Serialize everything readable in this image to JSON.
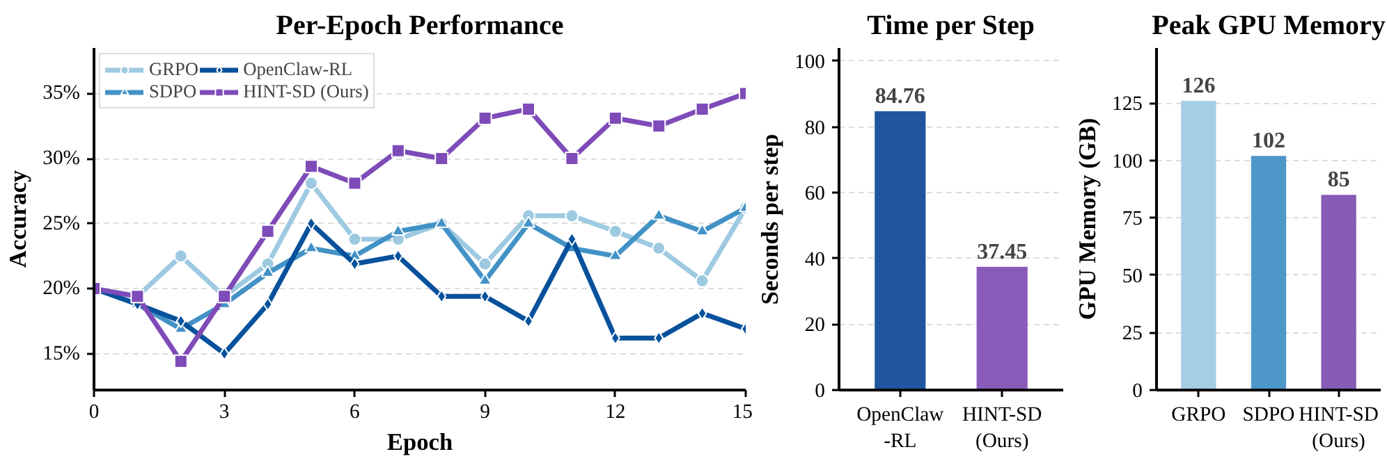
{
  "chart_data": [
    {
      "type": "line",
      "title": "Per-Epoch Performance",
      "xlabel": "Epoch",
      "ylabel": "Accuracy",
      "x": [
        0,
        1,
        2,
        3,
        4,
        5,
        6,
        7,
        8,
        9,
        10,
        11,
        12,
        13,
        14,
        15
      ],
      "xlim": [
        0,
        15
      ],
      "xticks": [
        0,
        3,
        6,
        9,
        12,
        15
      ],
      "ylim": [
        12.2,
        38.5
      ],
      "yticks": [
        {
          "value": 15,
          "label": "15%"
        },
        {
          "value": 20,
          "label": "20%"
        },
        {
          "value": 25,
          "label": "25%"
        },
        {
          "value": 30,
          "label": "30%"
        },
        {
          "value": 35,
          "label": "35%"
        }
      ],
      "grid": "y",
      "legend": "top left",
      "line_style": "solid",
      "series": [
        {
          "name": "GRPO",
          "color": "#9ecae1",
          "marker": "circle",
          "values": [
            20,
            19.4,
            22.5,
            19.4,
            21.9,
            28.1,
            23.8,
            23.8,
            25,
            21.9,
            25.6,
            25.6,
            24.4,
            23.1,
            20.6,
            26.2
          ]
        },
        {
          "name": "SDPO",
          "color": "#4292c6",
          "marker": "triangle",
          "values": [
            20,
            18.8,
            16.9,
            18.8,
            21.2,
            23.1,
            22.5,
            24.4,
            25,
            20.6,
            25,
            23.1,
            22.5,
            25.6,
            24.4,
            26.2
          ]
        },
        {
          "name": "OpenClaw-RL",
          "color": "#08519c",
          "marker": "diamond",
          "values": [
            20,
            18.8,
            17.5,
            15,
            18.8,
            25,
            21.9,
            22.5,
            19.4,
            19.4,
            17.5,
            23.8,
            16.2,
            16.2,
            18.1,
            16.9
          ]
        },
        {
          "name": "HINT-SD (Ours)",
          "color": "#7e4bb8",
          "marker": "square",
          "values": [
            20,
            19.4,
            14.4,
            19.4,
            24.4,
            29.4,
            28.1,
            30.6,
            30,
            33.1,
            33.8,
            30,
            33.1,
            32.5,
            33.8,
            35
          ]
        }
      ]
    },
    {
      "type": "bar",
      "title": "Time per Step",
      "ylabel": "Seconds per step",
      "categories": [
        "OpenClaw\n-RL",
        "HINT-SD\n(Ours)"
      ],
      "values": [
        84.76,
        37.45
      ],
      "colors": [
        "#1f569f",
        "#8a5cba"
      ],
      "ylim": [
        0,
        104
      ],
      "yticks": [
        0,
        20,
        40,
        60,
        80,
        100
      ],
      "grid": "y",
      "data_labels": true
    },
    {
      "type": "bar",
      "title": "Peak GPU Memory",
      "ylabel": "GPU Memory (GB)",
      "categories": [
        "GRPO",
        "SDPO",
        "HINT-SD\n(Ours)"
      ],
      "values": [
        126,
        102,
        85
      ],
      "colors": [
        "#a6cee3",
        "#4e97c9",
        "#855bb6"
      ],
      "ylim": [
        0,
        149
      ],
      "yticks": [
        0,
        25,
        50,
        75,
        100,
        125
      ],
      "grid": "y",
      "data_labels": true
    }
  ]
}
